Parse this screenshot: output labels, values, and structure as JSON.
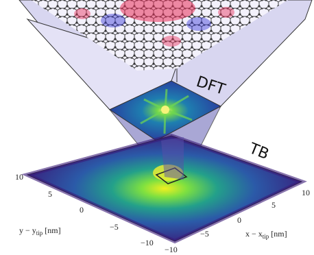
{
  "labels": {
    "dft": "DFT",
    "tb": "TB"
  },
  "y_axis": {
    "label": {
      "main": "y − y",
      "sub": "tip",
      "unit": "[nm]"
    },
    "ticks": [
      "10",
      "5",
      "0",
      "−5",
      "−10"
    ]
  },
  "x_axis": {
    "label": {
      "main": "x − x",
      "sub": "tip",
      "unit": "[nm]"
    },
    "ticks": [
      "10",
      "5",
      "0",
      "−5",
      "−10"
    ]
  }
}
